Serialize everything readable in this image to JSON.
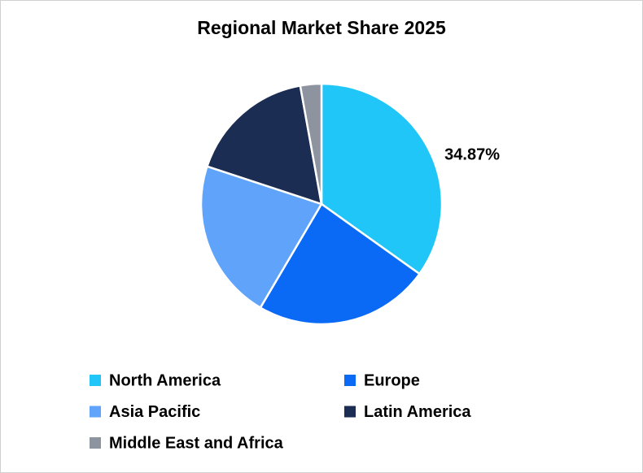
{
  "chart_data": {
    "type": "pie",
    "title": "Regional Market Share 2025",
    "categories": [
      "North America",
      "Europe",
      "Asia Pacific",
      "Latin America",
      "Middle East and Africa"
    ],
    "values": [
      34.87,
      23.6,
      21.6,
      17.1,
      2.83
    ],
    "value_labels": [
      "34.87%",
      null,
      null,
      null,
      null
    ],
    "colors": [
      "#21c6f8",
      "#0a6af6",
      "#60a3fb",
      "#1b2d52",
      "#8e949f"
    ],
    "legend": "bottom"
  }
}
